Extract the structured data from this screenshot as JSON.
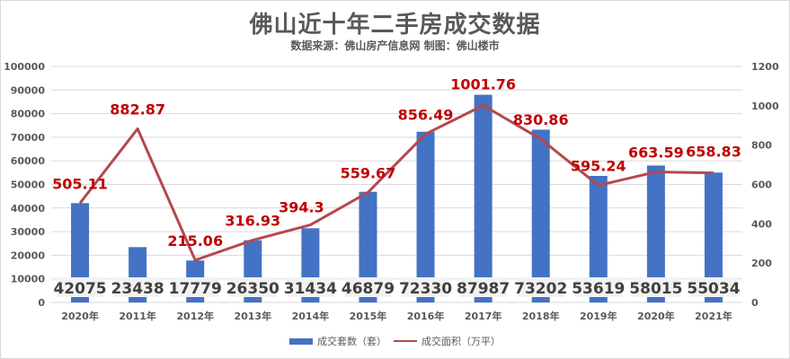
{
  "header": {
    "title": "佛山近十年二手房成交数据",
    "subtitle": "数据来源：佛山房产信息网   制图：佛山楼市"
  },
  "legend": {
    "bar_label": "成交套数（套）",
    "line_label": "成交面积（万平）"
  },
  "colors": {
    "bar": "#4472c4",
    "line": "#b5484e",
    "line_label": "#c00000",
    "grid": "#d9d9d9",
    "axis_text": "#595959",
    "bar_label_bg": "#f2f2f2"
  },
  "chart_data": {
    "type": "bar",
    "title": "佛山近十年二手房成交数据",
    "subtitle": "数据来源：佛山房产信息网   制图：佛山楼市",
    "categories": [
      "2020年",
      "2011年",
      "2012年",
      "2013年",
      "2014年",
      "2015年",
      "2016年",
      "2017年",
      "2018年",
      "2019年",
      "2020年",
      "2021年"
    ],
    "series": [
      {
        "name": "成交套数（套）",
        "type": "bar",
        "axis": "left",
        "values": [
          42075,
          23438,
          17779,
          26350,
          31434,
          46879,
          72330,
          87987,
          73202,
          53619,
          58015,
          55034
        ]
      },
      {
        "name": "成交面积（万平）",
        "type": "line",
        "axis": "right",
        "values": [
          505.11,
          882.87,
          215.06,
          316.93,
          394.3,
          559.67,
          856.49,
          1001.76,
          830.86,
          595.24,
          663.59,
          658.83
        ]
      }
    ],
    "y_left": {
      "ylim": [
        0,
        100000
      ],
      "ticks": [
        "0",
        "10000",
        "20000",
        "30000",
        "40000",
        "50000",
        "60000",
        "70000",
        "80000",
        "90000",
        "100000"
      ]
    },
    "y_right": {
      "ylim": [
        0,
        1200
      ],
      "ticks": [
        "0",
        "200",
        "400",
        "600",
        "800",
        "1000",
        "1200"
      ]
    },
    "xlabel": "",
    "ylabel": "",
    "grid": true,
    "legend_position": "bottom"
  }
}
